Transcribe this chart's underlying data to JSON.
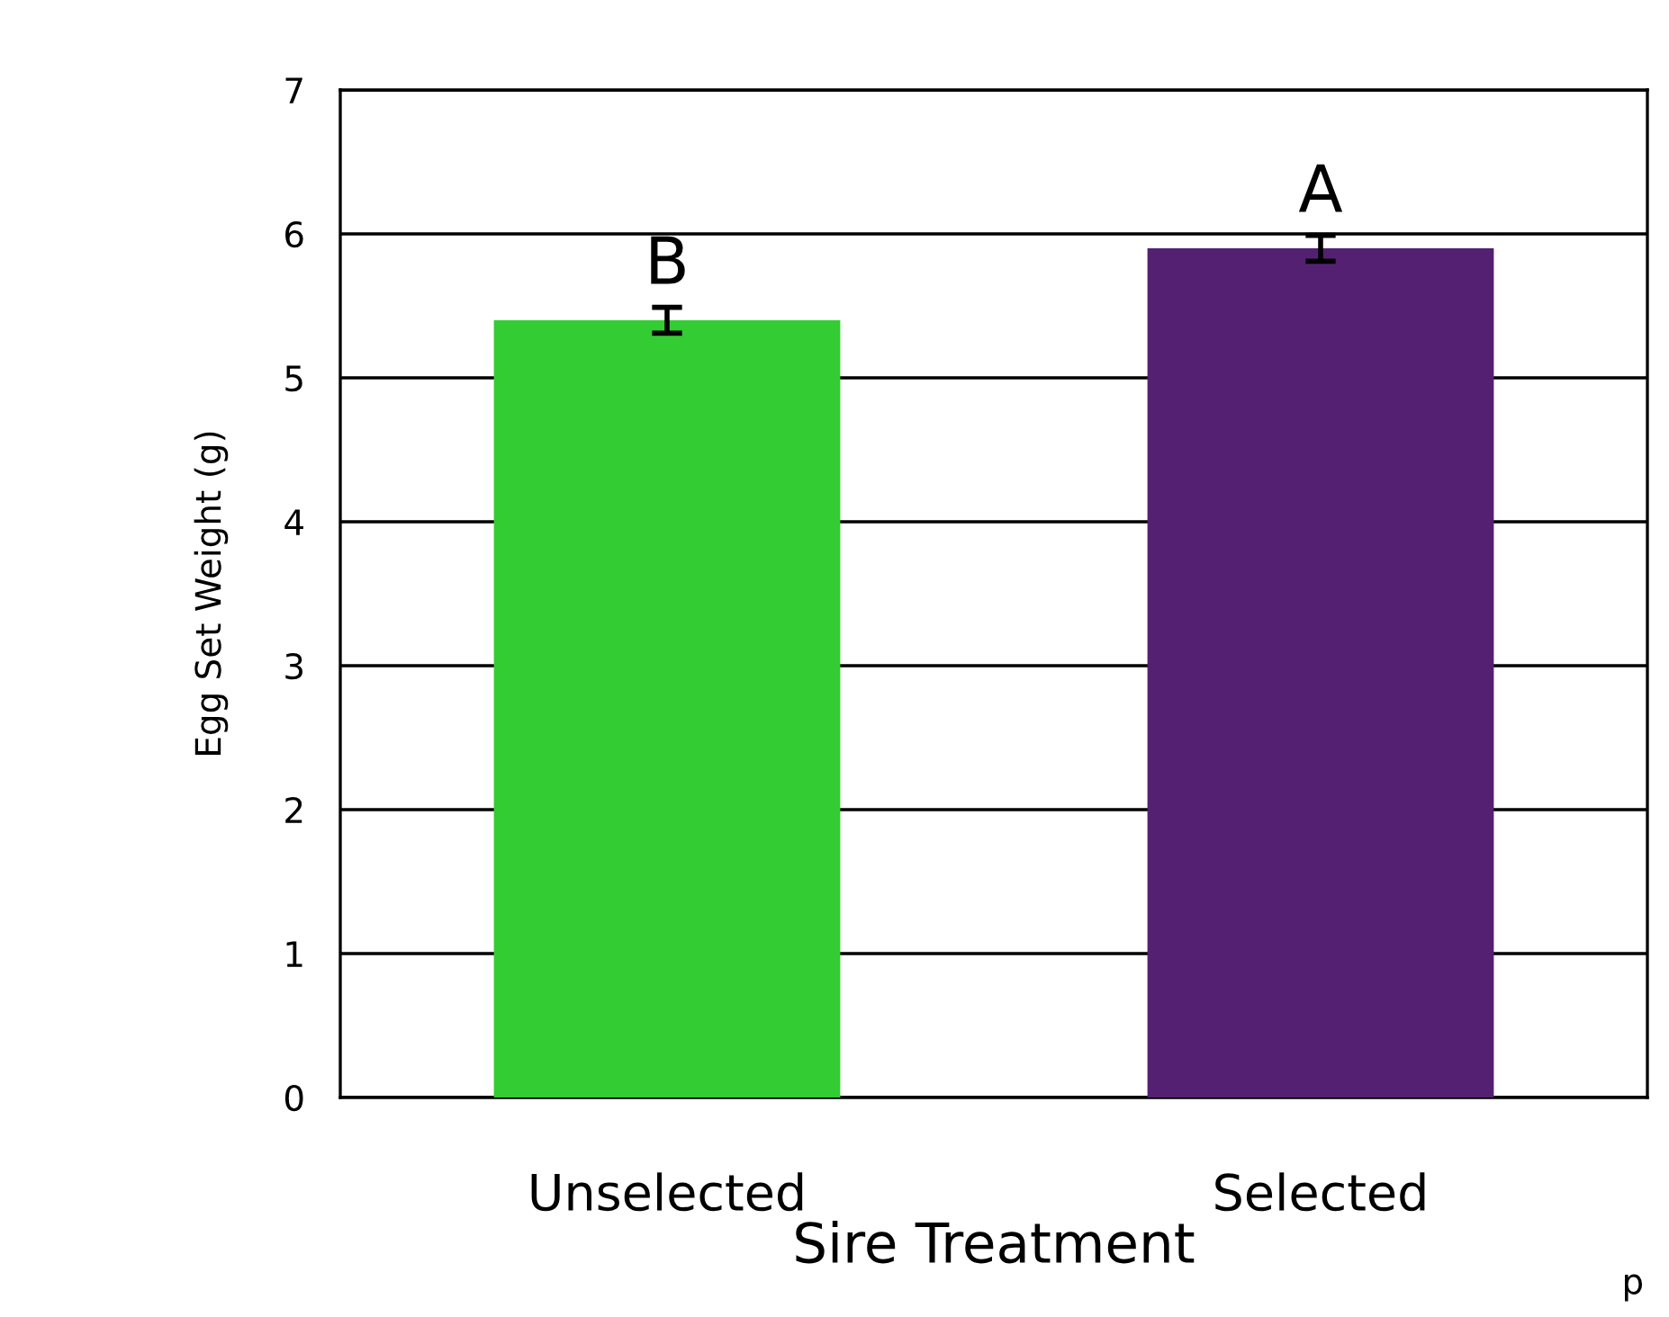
{
  "chart_data": {
    "type": "bar",
    "xlabel": "Sire Treatment",
    "ylabel": "Egg Set Weight (g)",
    "categories": [
      "Unselected",
      "Selected"
    ],
    "values": [
      5.4,
      5.9
    ],
    "errors": [
      0.09,
      0.09
    ],
    "colors": [
      "#33cc33",
      "#542172"
    ],
    "ylim": [
      0,
      7
    ],
    "yticks": [
      0,
      1,
      2,
      3,
      4,
      5,
      6,
      7
    ],
    "grid": "y",
    "legend": false,
    "annotations": [
      "B",
      "A",
      "p"
    ]
  }
}
